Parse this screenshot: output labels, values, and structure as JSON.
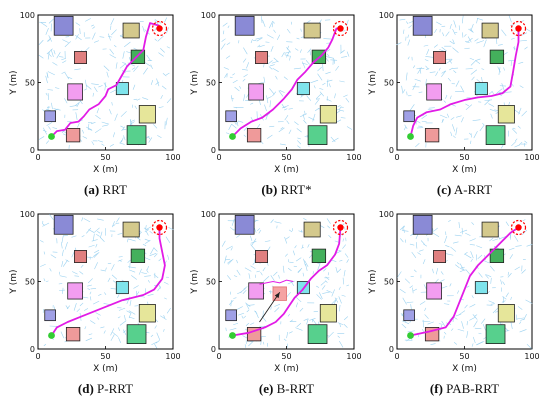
{
  "chart_data": [
    {
      "type": "scatter",
      "caption_letter": "(a)",
      "caption_text": " RRT",
      "xlabel": "X (m)",
      "ylabel": "Y (m)",
      "xlim": [
        0,
        100
      ],
      "ylim": [
        0,
        100
      ],
      "xticks": [
        "0",
        "50",
        "100"
      ],
      "yticks": [
        "0",
        "50",
        "100"
      ],
      "start": [
        10,
        10
      ],
      "goal": [
        90,
        90
      ],
      "path": [
        [
          10,
          10
        ],
        [
          14,
          14
        ],
        [
          20,
          15
        ],
        [
          24,
          20
        ],
        [
          30,
          21
        ],
        [
          34,
          25
        ],
        [
          38,
          30
        ],
        [
          45,
          34
        ],
        [
          50,
          40
        ],
        [
          52,
          45
        ],
        [
          58,
          48
        ],
        [
          62,
          55
        ],
        [
          66,
          62
        ],
        [
          72,
          68
        ],
        [
          78,
          74
        ],
        [
          80,
          84
        ],
        [
          83,
          94
        ],
        [
          90,
          92
        ]
      ]
    },
    {
      "type": "scatter",
      "caption_letter": "(b)",
      "caption_text": " RRT*",
      "xlabel": "X (m)",
      "ylabel": "Y (m)",
      "xlim": [
        0,
        100
      ],
      "ylim": [
        0,
        100
      ],
      "xticks": [
        "0",
        "50",
        "100"
      ],
      "yticks": [
        "0",
        "50",
        "100"
      ],
      "start": [
        10,
        10
      ],
      "goal": [
        90,
        90
      ],
      "path": [
        [
          10,
          10
        ],
        [
          16,
          16
        ],
        [
          24,
          21
        ],
        [
          32,
          24
        ],
        [
          40,
          30
        ],
        [
          48,
          38
        ],
        [
          54,
          45
        ],
        [
          58,
          52
        ],
        [
          64,
          58
        ],
        [
          70,
          65
        ],
        [
          76,
          70
        ],
        [
          81,
          76
        ],
        [
          84,
          82
        ],
        [
          87,
          90
        ],
        [
          90,
          90
        ]
      ]
    },
    {
      "type": "scatter",
      "caption_letter": "(c)",
      "caption_text": " A-RRT",
      "xlabel": "X (m)",
      "ylabel": "Y (m)",
      "xlim": [
        0,
        100
      ],
      "ylim": [
        0,
        100
      ],
      "xticks": [
        "0",
        "50",
        "100"
      ],
      "yticks": [
        "0",
        "50",
        "100"
      ],
      "start": [
        10,
        10
      ],
      "goal": [
        90,
        90
      ],
      "path": [
        [
          10,
          10
        ],
        [
          12,
          18
        ],
        [
          15,
          24
        ],
        [
          22,
          28
        ],
        [
          32,
          30
        ],
        [
          40,
          34
        ],
        [
          50,
          37
        ],
        [
          60,
          39
        ],
        [
          70,
          40
        ],
        [
          78,
          42
        ],
        [
          84,
          47
        ],
        [
          86,
          58
        ],
        [
          88,
          70
        ],
        [
          90,
          80
        ],
        [
          90,
          90
        ]
      ]
    },
    {
      "type": "scatter",
      "caption_letter": "(d)",
      "caption_text": " P-RRT",
      "xlabel": "X (m)",
      "ylabel": "Y (m)",
      "xlim": [
        0,
        100
      ],
      "ylim": [
        0,
        100
      ],
      "xticks": [
        "0",
        "50",
        "100"
      ],
      "yticks": [
        "0",
        "50",
        "100"
      ],
      "start": [
        10,
        10
      ],
      "goal": [
        90,
        90
      ],
      "path": [
        [
          10,
          10
        ],
        [
          14,
          16
        ],
        [
          22,
          20
        ],
        [
          32,
          24
        ],
        [
          42,
          28
        ],
        [
          52,
          32
        ],
        [
          62,
          36
        ],
        [
          70,
          38
        ],
        [
          78,
          40
        ],
        [
          86,
          44
        ],
        [
          92,
          52
        ],
        [
          94,
          62
        ],
        [
          92,
          72
        ],
        [
          90,
          82
        ],
        [
          90,
          90
        ]
      ]
    },
    {
      "type": "scatter",
      "caption_letter": "(e)",
      "caption_text": " B-RRT",
      "xlabel": "X (m)",
      "ylabel": "Y (m)",
      "xlim": [
        0,
        100
      ],
      "ylim": [
        0,
        100
      ],
      "xticks": [
        "0",
        "50",
        "100"
      ],
      "yticks": [
        "0",
        "50",
        "100"
      ],
      "start": [
        10,
        10
      ],
      "goal": [
        90,
        90
      ],
      "path": [
        [
          10,
          10
        ],
        [
          22,
          12
        ],
        [
          34,
          16
        ],
        [
          42,
          20
        ],
        [
          48,
          26
        ],
        [
          52,
          32
        ],
        [
          56,
          38
        ],
        [
          62,
          44
        ],
        [
          68,
          52
        ],
        [
          74,
          58
        ],
        [
          80,
          62
        ],
        [
          86,
          70
        ],
        [
          89,
          78
        ],
        [
          90,
          90
        ]
      ],
      "branch": [
        [
          30,
          48
        ],
        [
          40,
          50
        ],
        [
          45,
          49
        ],
        [
          50,
          51
        ],
        [
          55,
          50
        ]
      ],
      "arrow": [
        [
          30,
          20
        ],
        [
          45,
          42
        ]
      ]
    },
    {
      "type": "scatter",
      "caption_letter": "(f)",
      "caption_text": " PAB-RRT",
      "xlabel": "X (m)",
      "ylabel": "Y (m)",
      "xlim": [
        0,
        100
      ],
      "ylim": [
        0,
        100
      ],
      "xticks": [
        "0",
        "50",
        "100"
      ],
      "yticks": [
        "0",
        "50",
        "100"
      ],
      "start": [
        10,
        10
      ],
      "goal": [
        90,
        90
      ],
      "path": [
        [
          10,
          10
        ],
        [
          24,
          13
        ],
        [
          36,
          16
        ],
        [
          42,
          24
        ],
        [
          46,
          34
        ],
        [
          50,
          44
        ],
        [
          54,
          54
        ],
        [
          60,
          62
        ],
        [
          66,
          68
        ],
        [
          72,
          74
        ],
        [
          78,
          80
        ],
        [
          84,
          86
        ],
        [
          90,
          90
        ]
      ]
    }
  ],
  "obstacles": [
    {
      "x": 12,
      "y": 85,
      "w": 14,
      "h": 14,
      "color": "#8a8ad6"
    },
    {
      "x": 63,
      "y": 83,
      "w": 12,
      "h": 11,
      "color": "#d4c98c"
    },
    {
      "x": 27,
      "y": 64,
      "w": 9,
      "h": 9,
      "color": "#e08080"
    },
    {
      "x": 69,
      "y": 64,
      "w": 10,
      "h": 10,
      "color": "#44b05c"
    },
    {
      "x": 22,
      "y": 37,
      "w": 11,
      "h": 12,
      "color": "#f29df0"
    },
    {
      "x": 58,
      "y": 41,
      "w": 9,
      "h": 9,
      "color": "#7fe4ec"
    },
    {
      "x": 5,
      "y": 21,
      "w": 8,
      "h": 8,
      "color": "#a0a0e6"
    },
    {
      "x": 75,
      "y": 20,
      "w": 12,
      "h": 13,
      "color": "#e6e69a"
    },
    {
      "x": 21,
      "y": 6,
      "w": 10,
      "h": 10,
      "color": "#ef9a9a"
    },
    {
      "x": 66,
      "y": 4,
      "w": 14,
      "h": 14,
      "color": "#57d08d"
    }
  ],
  "colors": {
    "path": "#e21be6",
    "tree": "#9cd2f0",
    "start": "#33cc33",
    "goal": "#ff0000",
    "hidden_obstacle": "#f5a3a3"
  },
  "extra_obstacle_e": {
    "x": 40,
    "y": 36,
    "w": 10,
    "h": 10,
    "color": "#f5a3a3"
  }
}
